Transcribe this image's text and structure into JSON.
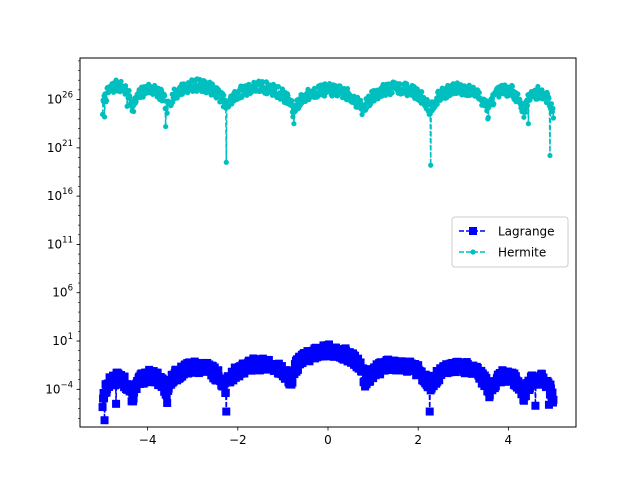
{
  "chart_data": {
    "type": "line",
    "title": "",
    "xlabel": "",
    "ylabel": "",
    "xlim": [
      -5.5,
      5.5
    ],
    "ylim_log10": [
      -7.9,
      30.3
    ],
    "yscale": "log",
    "grid": false,
    "legend_position": "center-right",
    "xticks": [
      {
        "value": -4,
        "label": "−4"
      },
      {
        "value": -2,
        "label": "−2"
      },
      {
        "value": 0,
        "label": "0"
      },
      {
        "value": 2,
        "label": "2"
      },
      {
        "value": 4,
        "label": "4"
      }
    ],
    "yticks": [
      {
        "exp": -4,
        "base": "10",
        "sup": "−4"
      },
      {
        "exp": 1,
        "base": "10",
        "sup": "1"
      },
      {
        "exp": 6,
        "base": "10",
        "sup": "6"
      },
      {
        "exp": 11,
        "base": "10",
        "sup": "11"
      },
      {
        "exp": 16,
        "base": "10",
        "sup": "16"
      },
      {
        "exp": 21,
        "base": "10",
        "sup": "21"
      },
      {
        "exp": 26,
        "base": "10",
        "sup": "26"
      }
    ],
    "series": [
      {
        "name": "Lagrange",
        "color": "#0000ff",
        "marker": "square",
        "linestyle": "dashed",
        "x_range": [
          -5,
          5
        ],
        "nodes": [
          -5,
          -4.33,
          -3.56,
          -2.26,
          -0.78,
          0.78,
          2.26,
          3.56,
          4.33,
          5
        ],
        "arch_peaks_log10": [
          -4.2,
          -2.9,
          -2.6,
          -1.7,
          -1.4,
          0.0,
          -1.4,
          -1.7,
          -2.6,
          -2.9,
          -4.2
        ],
        "dips_log10": [
          {
            "x": -4.95,
            "y": -7.2
          },
          {
            "x": -4.7,
            "y": -5.5
          },
          {
            "x": -2.26,
            "y": -6.3
          },
          {
            "x": 2.26,
            "y": -6.3
          },
          {
            "x": 4.6,
            "y": -5.7
          },
          {
            "x": 4.9,
            "y": -5.6
          }
        ]
      },
      {
        "name": "Hermite",
        "color": "#00bfbf",
        "marker": "circle",
        "linestyle": "dashed",
        "x_range": [
          -5,
          5
        ],
        "nodes": [
          -5,
          -4.33,
          -3.56,
          -2.26,
          -0.78,
          0.78,
          2.26,
          3.56,
          4.33,
          5
        ],
        "arch_peaks_log10": [
          27.0,
          27.4,
          27.1,
          27.5,
          27.3,
          27.0,
          27.2,
          27.1,
          27.0,
          26.7,
          26.2
        ],
        "dips_log10": [
          {
            "x": -4.95,
            "y": 24.2
          },
          {
            "x": -4.45,
            "y": 25.3
          },
          {
            "x": -3.6,
            "y": 23.2
          },
          {
            "x": -2.26,
            "y": 19.5
          },
          {
            "x": -0.75,
            "y": 23.5
          },
          {
            "x": 2.28,
            "y": 19.2
          },
          {
            "x": 3.55,
            "y": 24.0
          },
          {
            "x": 4.45,
            "y": 23.5
          },
          {
            "x": 4.92,
            "y": 20.2
          }
        ]
      }
    ]
  }
}
